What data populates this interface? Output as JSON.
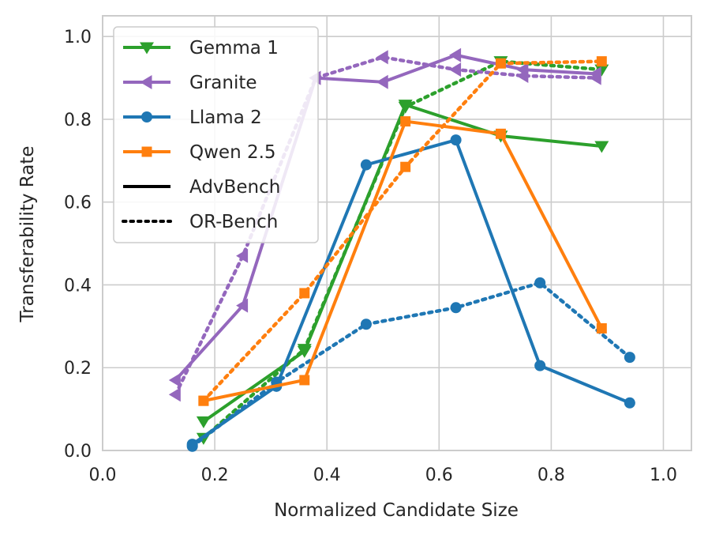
{
  "chart_data": {
    "type": "line",
    "xlabel": "Normalized Candidate Size",
    "ylabel": "Transferability Rate",
    "xlim": [
      0.0,
      1.05
    ],
    "ylim": [
      0.0,
      1.05
    ],
    "xticks": [
      0.0,
      0.2,
      0.4,
      0.6,
      0.8,
      1.0
    ],
    "yticks": [
      0.0,
      0.2,
      0.4,
      0.6,
      0.8,
      1.0
    ],
    "xtick_labels": [
      "0.0",
      "0.2",
      "0.4",
      "0.6",
      "0.8",
      "1.0"
    ],
    "ytick_labels": [
      "0.0",
      "0.2",
      "0.4",
      "0.6",
      "0.8",
      "1.0"
    ],
    "grid": true,
    "legend_position": "top-left",
    "series": [
      {
        "name": "Gemma 1",
        "model": "Gemma 1",
        "benchmark": "AdvBench",
        "color": "#2ca02c",
        "marker": "triangle-down",
        "linestyle": "solid",
        "x": [
          0.18,
          0.36,
          0.54,
          0.71,
          0.89
        ],
        "y": [
          0.07,
          0.24,
          0.835,
          0.76,
          0.735
        ]
      },
      {
        "name": "Gemma 1",
        "model": "Gemma 1",
        "benchmark": "OR-Bench",
        "color": "#2ca02c",
        "marker": "triangle-down",
        "linestyle": "dotted",
        "x": [
          0.18,
          0.36,
          0.54,
          0.71,
          0.89
        ],
        "y": [
          0.03,
          0.245,
          0.83,
          0.94,
          0.92
        ]
      },
      {
        "name": "Granite",
        "model": "Granite",
        "benchmark": "AdvBench",
        "color": "#9467bd",
        "marker": "triangle-left",
        "linestyle": "solid",
        "x": [
          0.13,
          0.25,
          0.38,
          0.5,
          0.63,
          0.75,
          0.88
        ],
        "y": [
          0.17,
          0.35,
          0.9,
          0.89,
          0.955,
          0.92,
          0.91
        ]
      },
      {
        "name": "Granite",
        "model": "Granite",
        "benchmark": "OR-Bench",
        "color": "#9467bd",
        "marker": "triangle-left",
        "linestyle": "dotted",
        "x": [
          0.13,
          0.25,
          0.38,
          0.5,
          0.63,
          0.75,
          0.88
        ],
        "y": [
          0.135,
          0.47,
          0.9,
          0.95,
          0.92,
          0.905,
          0.9
        ]
      },
      {
        "name": "Llama 2",
        "model": "Llama 2",
        "benchmark": "AdvBench",
        "color": "#1f77b4",
        "marker": "circle",
        "linestyle": "solid",
        "x": [
          0.16,
          0.31,
          0.47,
          0.63,
          0.78,
          0.94
        ],
        "y": [
          0.015,
          0.155,
          0.69,
          0.75,
          0.205,
          0.115
        ]
      },
      {
        "name": "Llama 2",
        "model": "Llama 2",
        "benchmark": "OR-Bench",
        "color": "#1f77b4",
        "marker": "circle",
        "linestyle": "dotted",
        "x": [
          0.16,
          0.31,
          0.47,
          0.63,
          0.78,
          0.94
        ],
        "y": [
          0.01,
          0.165,
          0.305,
          0.345,
          0.405,
          0.225
        ]
      },
      {
        "name": "Qwen 2.5",
        "model": "Qwen 2.5",
        "benchmark": "AdvBench",
        "color": "#ff7f0e",
        "marker": "square",
        "linestyle": "solid",
        "x": [
          0.18,
          0.36,
          0.54,
          0.71,
          0.89
        ],
        "y": [
          0.12,
          0.17,
          0.795,
          0.765,
          0.295
        ]
      },
      {
        "name": "Qwen 2.5",
        "model": "Qwen 2.5",
        "benchmark": "OR-Bench",
        "color": "#ff7f0e",
        "marker": "square",
        "linestyle": "dotted",
        "x": [
          0.18,
          0.36,
          0.54,
          0.71,
          0.89
        ],
        "y": [
          0.12,
          0.38,
          0.685,
          0.935,
          0.94
        ]
      }
    ],
    "legend": [
      {
        "label": "Gemma 1",
        "color": "#2ca02c",
        "marker": "triangle-down",
        "linestyle": "solid"
      },
      {
        "label": "Granite",
        "color": "#9467bd",
        "marker": "triangle-left",
        "linestyle": "solid"
      },
      {
        "label": "Llama 2",
        "color": "#1f77b4",
        "marker": "circle",
        "linestyle": "solid"
      },
      {
        "label": "Qwen 2.5",
        "color": "#ff7f0e",
        "marker": "square",
        "linestyle": "solid"
      },
      {
        "label": "AdvBench",
        "color": "#000000",
        "marker": "none",
        "linestyle": "solid"
      },
      {
        "label": "OR-Bench",
        "color": "#000000",
        "marker": "none",
        "linestyle": "dotted"
      }
    ]
  }
}
